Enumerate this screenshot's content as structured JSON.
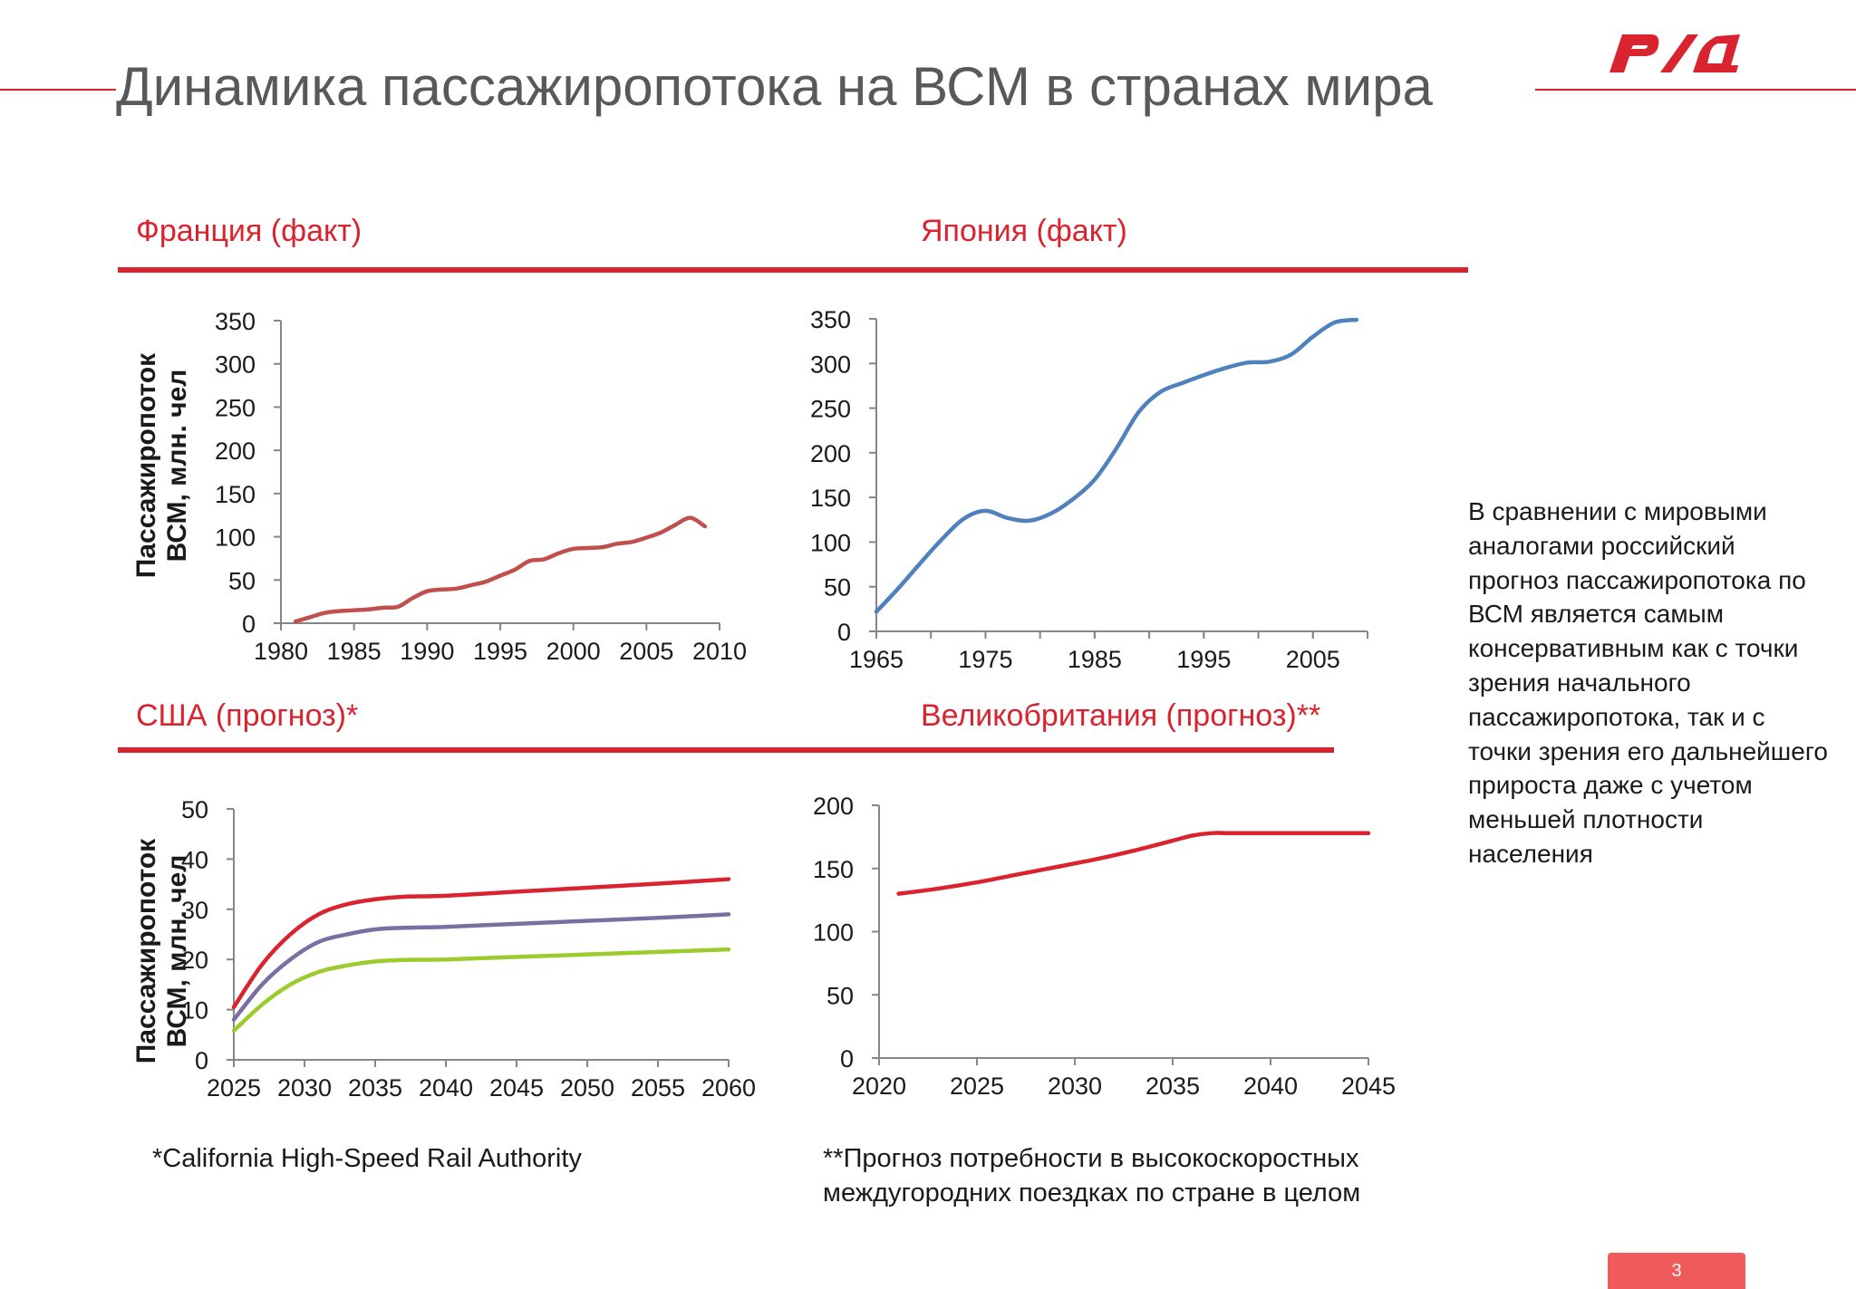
{
  "slide": {
    "title": "Динамика пассажиропотока на ВСМ в странах мира",
    "logo_text": "РЖД",
    "page_number": "3",
    "accent_color": "#d9232e"
  },
  "sections": {
    "france": "Франция (факт)",
    "japan": "Япония (факт)",
    "usa": "США (прогноз)*",
    "uk": "Великобритания (прогноз)**"
  },
  "ylabel_line1": "Пассажиропоток",
  "ylabel_line2": "ВСМ, млн. чел",
  "note": "В сравнении с мировыми аналогами российский прогноз пассажиропотока по ВСМ является самым консервативным как с точки зрения начального пассажиропотока, так и с точки зрения его дальнейшего прироста даже с учетом меньшей плотности населения",
  "footnotes": {
    "usa": "*California High-Speed Rail Authority",
    "uk_line1": "**Прогноз потребности в высокоскоростных",
    "uk_line2": "междугородних поездках по стране в целом"
  },
  "chart_data": [
    {
      "id": "france",
      "type": "line",
      "title": "Франция (факт)",
      "xlabel": "",
      "ylabel": "Пассажиропоток ВСМ, млн. чел",
      "xlim": [
        1980,
        2010
      ],
      "ylim": [
        0,
        350
      ],
      "xticks": [
        1980,
        1985,
        1990,
        1995,
        2000,
        2005,
        2010
      ],
      "yticks": [
        0,
        50,
        100,
        150,
        200,
        250,
        300,
        350
      ],
      "grid": false,
      "series": [
        {
          "color": "#c0504d",
          "x": [
            1981,
            1982,
            1983,
            1984,
            1985,
            1986,
            1987,
            1988,
            1989,
            1990,
            1991,
            1992,
            1993,
            1994,
            1995,
            1996,
            1997,
            1998,
            1999,
            2000,
            2001,
            2002,
            2003,
            2004,
            2005,
            2006,
            2007,
            2008,
            2009
          ],
          "y": [
            2,
            7,
            12,
            14,
            15,
            16,
            18,
            19,
            29,
            37,
            39,
            40,
            44,
            48,
            55,
            62,
            72,
            74,
            81,
            86,
            87,
            88,
            92,
            94,
            99,
            105,
            114,
            122,
            112
          ]
        }
      ]
    },
    {
      "id": "japan",
      "type": "line",
      "title": "Япония (факт)",
      "xlabel": "",
      "ylabel": "",
      "xlim": [
        1965,
        2010
      ],
      "ylim": [
        0,
        350
      ],
      "xticks": [
        1965,
        1975,
        1985,
        1995,
        2005
      ],
      "yticks": [
        0,
        50,
        100,
        150,
        200,
        250,
        300,
        350
      ],
      "grid": false,
      "series": [
        {
          "color": "#4f81bd",
          "x": [
            1965,
            1967,
            1969,
            1971,
            1973,
            1975,
            1977,
            1979,
            1981,
            1983,
            1985,
            1987,
            1989,
            1991,
            1993,
            1995,
            1997,
            1999,
            2001,
            2003,
            2005,
            2007,
            2009
          ],
          "y": [
            22,
            48,
            76,
            103,
            126,
            135,
            127,
            124,
            132,
            148,
            170,
            205,
            245,
            268,
            278,
            287,
            295,
            301,
            302,
            310,
            330,
            346,
            349
          ]
        }
      ]
    },
    {
      "id": "usa",
      "type": "line",
      "title": "США (прогноз)*",
      "xlabel": "",
      "ylabel": "Пассажиропоток ВСМ, млн. чел",
      "xlim": [
        2025,
        2060
      ],
      "ylim": [
        0,
        50
      ],
      "xticks": [
        2025,
        2030,
        2035,
        2040,
        2045,
        2050,
        2055,
        2060
      ],
      "yticks": [
        0,
        10,
        20,
        30,
        40,
        50
      ],
      "grid": false,
      "series": [
        {
          "color": "#d9232e",
          "x": [
            2025,
            2027,
            2029,
            2031,
            2033,
            2035,
            2037,
            2040,
            2045,
            2050,
            2055,
            2060
          ],
          "y": [
            10.5,
            19,
            25,
            29,
            31,
            32,
            32.5,
            32.7,
            33.5,
            34.3,
            35.1,
            36
          ]
        },
        {
          "color": "#7a6fa3",
          "x": [
            2025,
            2027,
            2029,
            2031,
            2033,
            2035,
            2037,
            2040,
            2045,
            2050,
            2055,
            2060
          ],
          "y": [
            8,
            15,
            20,
            23.5,
            25,
            26,
            26.3,
            26.5,
            27.1,
            27.7,
            28.3,
            29
          ]
        },
        {
          "color": "#9bcb2c",
          "x": [
            2025,
            2027,
            2029,
            2031,
            2033,
            2035,
            2037,
            2040,
            2045,
            2050,
            2055,
            2060
          ],
          "y": [
            5.8,
            11,
            15,
            17.5,
            18.8,
            19.6,
            19.9,
            20,
            20.5,
            21,
            21.5,
            22
          ]
        }
      ]
    },
    {
      "id": "uk",
      "type": "line",
      "title": "Великобритания (прогноз)**",
      "xlabel": "",
      "ylabel": "",
      "xlim": [
        2020,
        2045
      ],
      "ylim": [
        0,
        200
      ],
      "xticks": [
        2020,
        2025,
        2030,
        2035,
        2040,
        2045
      ],
      "yticks": [
        0,
        50,
        100,
        150,
        200
      ],
      "grid": false,
      "series": [
        {
          "color": "#d9232e",
          "x": [
            2021,
            2023,
            2025,
            2027,
            2029,
            2031,
            2033,
            2035,
            2036,
            2037,
            2038,
            2040,
            2042,
            2045
          ],
          "y": [
            130,
            134,
            139,
            145,
            151,
            157,
            164,
            172,
            176,
            178,
            178,
            178,
            178,
            178
          ]
        }
      ]
    }
  ]
}
